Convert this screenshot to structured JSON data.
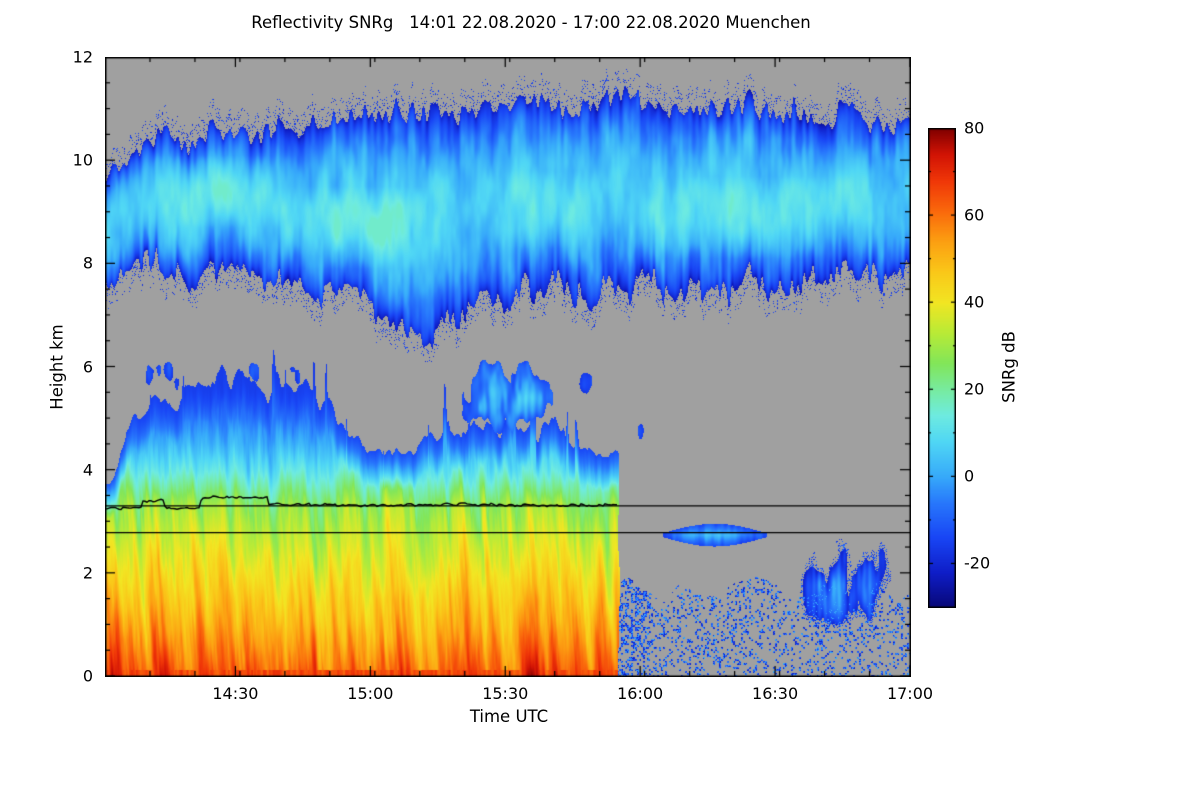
{
  "chart_data": {
    "type": "heatmap",
    "title": "Reflectivity SNRg   14:01 22.08.2020 - 17:00 22.08.2020 Muenchen",
    "xlabel": "Time UTC",
    "ylabel": "Height km",
    "x_start_label": "14:01",
    "x_end_label": "17:00",
    "x_minutes_range": [
      0,
      179
    ],
    "x_ticks": [
      {
        "t": 29,
        "label": "14:30"
      },
      {
        "t": 59,
        "label": "15:00"
      },
      {
        "t": 89,
        "label": "15:30"
      },
      {
        "t": 119,
        "label": "16:00"
      },
      {
        "t": 149,
        "label": "16:30"
      },
      {
        "t": 179,
        "label": "17:00"
      }
    ],
    "x_minor_step_min": 10,
    "ylim": [
      0,
      12
    ],
    "y_ticks": [
      {
        "v": 0,
        "label": "0"
      },
      {
        "v": 2,
        "label": "2"
      },
      {
        "v": 4,
        "label": "4"
      },
      {
        "v": 6,
        "label": "6"
      },
      {
        "v": 8,
        "label": "8"
      },
      {
        "v": 10,
        "label": "10"
      },
      {
        "v": 12,
        "label": "12"
      }
    ],
    "y_minor_step_km": 0.5,
    "colorbar": {
      "label": "SNRg dB",
      "range": [
        -30,
        80
      ],
      "ticks": [
        {
          "v": 80,
          "label": "80"
        },
        {
          "v": 60,
          "label": "60"
        },
        {
          "v": 40,
          "label": "40"
        },
        {
          "v": 20,
          "label": "20"
        },
        {
          "v": 0,
          "label": "0"
        },
        {
          "v": -20,
          "label": "-20"
        }
      ]
    },
    "no_data_color": "#a0a0a0",
    "colormap": [
      {
        "v": -30,
        "c": [
          8,
          8,
          120
        ]
      },
      {
        "v": -22,
        "c": [
          15,
          30,
          200
        ]
      },
      {
        "v": -14,
        "c": [
          25,
          70,
          245
        ]
      },
      {
        "v": -6,
        "c": [
          40,
          120,
          252
        ]
      },
      {
        "v": 0,
        "c": [
          55,
          170,
          250
        ]
      },
      {
        "v": 8,
        "c": [
          80,
          215,
          245
        ]
      },
      {
        "v": 14,
        "c": [
          110,
          235,
          225
        ]
      },
      {
        "v": 20,
        "c": [
          120,
          235,
          160
        ]
      },
      {
        "v": 26,
        "c": [
          130,
          230,
          90
        ]
      },
      {
        "v": 33,
        "c": [
          185,
          235,
          55
        ]
      },
      {
        "v": 40,
        "c": [
          242,
          230,
          35
        ]
      },
      {
        "v": 47,
        "c": [
          250,
          200,
          25
        ]
      },
      {
        "v": 54,
        "c": [
          252,
          160,
          18
        ]
      },
      {
        "v": 61,
        "c": [
          250,
          105,
          12
        ]
      },
      {
        "v": 68,
        "c": [
          240,
          55,
          8
        ]
      },
      {
        "v": 74,
        "c": [
          210,
          20,
          5
        ]
      },
      {
        "v": 80,
        "c": [
          128,
          0,
          0
        ]
      }
    ],
    "features": {
      "upper_cloud_layer": {
        "description": "Continuous ice cloud layer between ~7 and ~11.2 km over whole period, SNR -25 to +15 dB, brighter cyan cores around 8-9.5 km",
        "top_pts": [
          [
            0,
            9.8
          ],
          [
            6,
            10.2
          ],
          [
            12,
            10.45
          ],
          [
            18,
            10.3
          ],
          [
            25,
            10.55
          ],
          [
            35,
            10.5
          ],
          [
            45,
            10.65
          ],
          [
            55,
            10.8
          ],
          [
            65,
            10.85
          ],
          [
            75,
            10.95
          ],
          [
            85,
            11.05
          ],
          [
            95,
            11.1
          ],
          [
            105,
            11.05
          ],
          [
            112,
            11.2
          ],
          [
            120,
            11.15
          ],
          [
            130,
            11.05
          ],
          [
            140,
            11.0
          ],
          [
            150,
            10.95
          ],
          [
            160,
            10.9
          ],
          [
            170,
            10.85
          ],
          [
            179,
            10.75
          ]
        ],
        "base_pts": [
          [
            0,
            8.0
          ],
          [
            15,
            7.85
          ],
          [
            30,
            7.75
          ],
          [
            45,
            7.55
          ],
          [
            55,
            7.35
          ],
          [
            65,
            7.1
          ],
          [
            72,
            6.7
          ],
          [
            78,
            7.0
          ],
          [
            85,
            7.3
          ],
          [
            95,
            7.45
          ],
          [
            110,
            7.5
          ],
          [
            130,
            7.5
          ],
          [
            150,
            7.55
          ],
          [
            165,
            7.65
          ],
          [
            179,
            7.85
          ]
        ],
        "cores": [
          {
            "t0": 10,
            "t1": 42,
            "h0": 8.7,
            "h1": 10.1,
            "amp": 7
          },
          {
            "t0": 38,
            "t1": 78,
            "h0": 7.9,
            "h1": 9.5,
            "amp": 8
          },
          {
            "t0": 85,
            "t1": 112,
            "h0": 8.3,
            "h1": 9.8,
            "amp": 5
          },
          {
            "t0": 115,
            "t1": 170,
            "h0": 8.1,
            "h1": 9.7,
            "amp": 7
          }
        ]
      },
      "mid_level_patches": [
        {
          "t0": 2,
          "t1": 14,
          "h0": 4.5,
          "h1": 5.7,
          "thr": 0.42,
          "base": -12,
          "gain": 40,
          "seed": 71
        },
        {
          "t0": 4,
          "t1": 20,
          "h0": 5.3,
          "h1": 6.25,
          "thr": 0.47,
          "base": -14,
          "gain": 30,
          "seed": 72
        },
        {
          "t0": 27,
          "t1": 50,
          "h0": 5.5,
          "h1": 6.25,
          "thr": 0.48,
          "base": -14,
          "gain": 28,
          "seed": 73
        },
        {
          "t0": 76,
          "t1": 103,
          "h0": 4.4,
          "h1": 6.35,
          "thr": 0.36,
          "base": -12,
          "gain": 55,
          "seed": 74
        },
        {
          "t0": 100,
          "t1": 113,
          "h0": 5.3,
          "h1": 6.3,
          "thr": 0.5,
          "base": -14,
          "gain": 26,
          "seed": 75
        },
        {
          "t0": 114,
          "t1": 123,
          "h0": 4.3,
          "h1": 5.1,
          "thr": 0.5,
          "base": -13,
          "gain": 26,
          "seed": 76
        }
      ],
      "precipitation": {
        "description": "Rain from surface up to 4.5-6 km from 14:01 until ~15:55 with sharp cutoff; red/orange 50-70 dB below 2.5 km, yellow-green 25-40 dB near melting layer, cyan-blue above",
        "t_end": 114,
        "top_pts": [
          [
            0,
            3.6
          ],
          [
            4,
            4.4
          ],
          [
            8,
            5.1
          ],
          [
            12,
            5.5
          ],
          [
            16,
            5.3
          ],
          [
            20,
            5.6
          ],
          [
            24,
            5.85
          ],
          [
            28,
            5.7
          ],
          [
            32,
            5.85
          ],
          [
            36,
            5.6
          ],
          [
            40,
            5.75
          ],
          [
            44,
            5.6
          ],
          [
            48,
            5.35
          ],
          [
            52,
            5.05
          ],
          [
            56,
            4.7
          ],
          [
            60,
            4.45
          ],
          [
            64,
            4.55
          ],
          [
            68,
            4.3
          ],
          [
            72,
            4.5
          ],
          [
            76,
            4.75
          ],
          [
            80,
            4.95
          ],
          [
            84,
            4.65
          ],
          [
            88,
            4.85
          ],
          [
            92,
            5.05
          ],
          [
            96,
            4.85
          ],
          [
            100,
            4.9
          ],
          [
            104,
            4.65
          ],
          [
            108,
            4.5
          ],
          [
            112,
            4.35
          ],
          [
            115,
            4.25
          ]
        ],
        "profile": [
          [
            0,
            64
          ],
          [
            0.5,
            58
          ],
          [
            1,
            52
          ],
          [
            1.5,
            47
          ],
          [
            2,
            42
          ],
          [
            2.5,
            37
          ],
          [
            3,
            32
          ],
          [
            3.3,
            29
          ],
          [
            3.6,
            22
          ],
          [
            4,
            12
          ],
          [
            4.5,
            2
          ],
          [
            5,
            -6
          ],
          [
            5.5,
            -12
          ],
          [
            6,
            -16
          ]
        ]
      },
      "melting_layer_lines": {
        "description": "Two straight black reference lines at ~3.3 km and ~2.78 km across whole plot; jagged black melting-layer line ~3.25-3.47 km until 15:55",
        "straight_lines_km": [
          3.3,
          2.78
        ],
        "jagged_pts": [
          [
            0,
            3.26
          ],
          [
            8,
            3.26
          ],
          [
            8.5,
            3.4
          ],
          [
            13,
            3.4
          ],
          [
            13.5,
            3.26
          ],
          [
            21,
            3.26
          ],
          [
            21.5,
            3.47
          ],
          [
            36,
            3.47
          ],
          [
            36.5,
            3.33
          ],
          [
            55,
            3.31
          ],
          [
            80,
            3.33
          ],
          [
            100,
            3.3
          ],
          [
            114,
            3.32
          ]
        ],
        "t_end": 114
      },
      "boundary_layer_speckle": {
        "description": "Sparse blue/cyan speckle below ~1.8 km after rain ends (15:55-17:00)",
        "t0": 113,
        "t1": 179,
        "top_km": 1.7
      },
      "detached_patches": [
        {
          "type": "lens",
          "t0": 124,
          "t1": 147,
          "hc": 2.74,
          "hw": 0.18,
          "description": "Thin cyan cloud streak ~2.75 km, 16:05-16:28"
        },
        {
          "type": "blob",
          "t0": 151,
          "t1": 177,
          "h0": 0.8,
          "h1": 2.95,
          "description": "Blue/cyan cloud patch 0.9-2.9 km, 16:32-16:58"
        }
      ]
    }
  }
}
